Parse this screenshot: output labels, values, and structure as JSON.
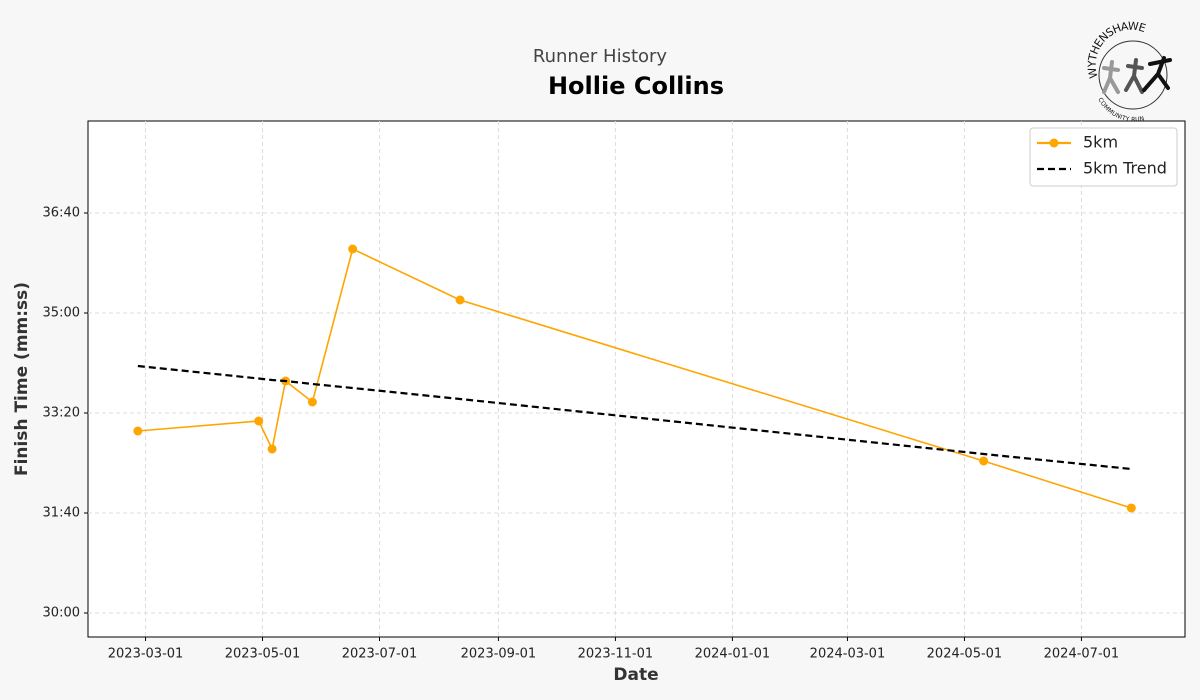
{
  "logo": {
    "top": "WYTHENSHAWE",
    "bottom": "COMMUNITY RUN"
  },
  "chart_data": {
    "type": "line",
    "subtitle": "Runner History",
    "title": "Hollie Collins",
    "x_label": "Date",
    "y_label": "Finish Time (mm:ss)",
    "x": [
      "2023-02-25",
      "2023-04-29",
      "2023-05-06",
      "2023-05-13",
      "2023-05-27",
      "2023-06-17",
      "2023-08-12",
      "2024-05-11",
      "2024-07-27"
    ],
    "series": [
      {
        "name": "5km",
        "color": "#ffa500",
        "marker": "o",
        "dashed": false,
        "values": [
          1982,
          1992,
          1964,
          2032,
          2011,
          2164,
          2113,
          1952,
          1905
        ]
      },
      {
        "name": "5km Trend",
        "color": "#000000",
        "marker": null,
        "dashed": true,
        "values": [
          2047,
          2034.5,
          2033,
          2032,
          2029,
          2025,
          2014,
          1959,
          1944
        ]
      }
    ],
    "xlim": [
      "2023-01-30",
      "2024-08-24"
    ],
    "xticks": [
      "2023-03-01",
      "2023-05-01",
      "2023-07-01",
      "2023-09-01",
      "2023-11-01",
      "2024-01-01",
      "2024-03-01",
      "2024-05-01",
      "2024-07-01"
    ],
    "ylim": [
      1776,
      2292
    ],
    "yticks": [
      {
        "value": 1800,
        "label": "30:00"
      },
      {
        "value": 1900,
        "label": "31:40"
      },
      {
        "value": 2000,
        "label": "33:20"
      },
      {
        "value": 2100,
        "label": "35:00"
      },
      {
        "value": 2200,
        "label": "36:40"
      }
    ],
    "grid": true,
    "legend": "upper right"
  }
}
